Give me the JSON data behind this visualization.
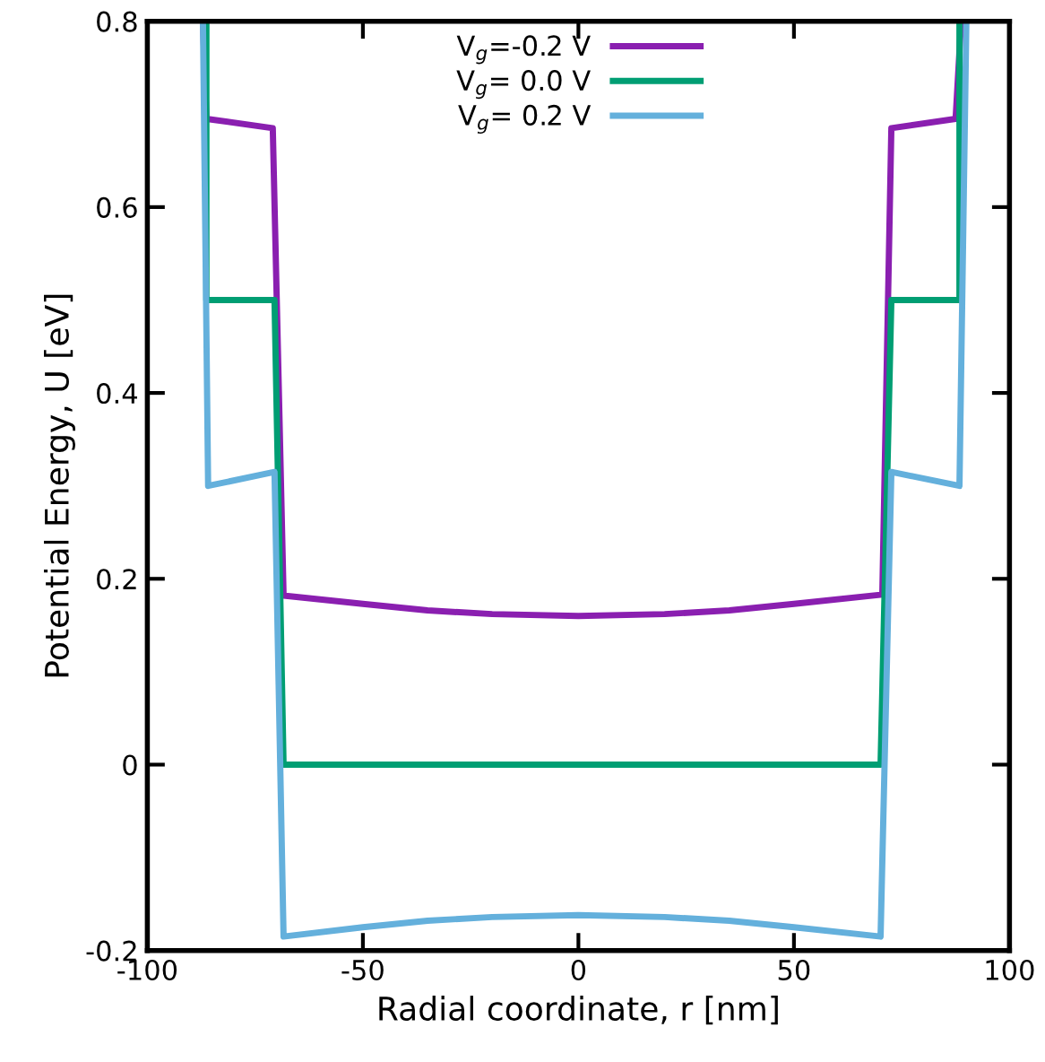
{
  "chart_data": {
    "type": "line",
    "xlabel": "Radial coordinate, r [nm]",
    "ylabel": "Potential Energy, U [eV]",
    "xlim": [
      -100,
      100
    ],
    "ylim": [
      -0.2,
      0.8
    ],
    "xticks": [
      -100,
      -50,
      0,
      50,
      100
    ],
    "yticks": [
      -0.2,
      0,
      0.2,
      0.4,
      0.6,
      0.8
    ],
    "grid": false,
    "legend": "top",
    "marker": "none",
    "line_style": "solid",
    "series": [
      {
        "name": "V$_{g}$=-0.2 V",
        "color": "#8a1fb0",
        "x": [
          -87.1,
          -86.3,
          -70.9,
          -68.4,
          -50,
          -35,
          -20,
          0,
          20,
          35,
          50,
          70.5,
          72.6,
          87.5,
          88.8
        ],
        "values": [
          0.8,
          0.695,
          0.685,
          0.182,
          0.173,
          0.166,
          0.162,
          0.16,
          0.162,
          0.166,
          0.173,
          0.183,
          0.685,
          0.695,
          0.8
        ]
      },
      {
        "name": "V$_{g}$= 0.0 V",
        "color": "#009e73",
        "x": [
          -86.3,
          -86.3,
          -70.5,
          -68.4,
          70.1,
          72.6,
          88.4,
          88.4
        ],
        "values": [
          0.8,
          0.5,
          0.5,
          0,
          0,
          0.5,
          0.5,
          0.8
        ]
      },
      {
        "name": "V$_{g}$= 0.2 V",
        "color": "#64b0dc",
        "x": [
          -87.1,
          -85.9,
          -70.5,
          -68.4,
          -50,
          -35,
          -20,
          0,
          20,
          35,
          50,
          70.1,
          72.6,
          88.4,
          90.0
        ],
        "values": [
          0.8,
          0.3,
          0.315,
          -0.185,
          -0.175,
          -0.168,
          -0.164,
          -0.162,
          -0.164,
          -0.168,
          -0.175,
          -0.185,
          0.315,
          0.3,
          0.8
        ]
      }
    ]
  }
}
